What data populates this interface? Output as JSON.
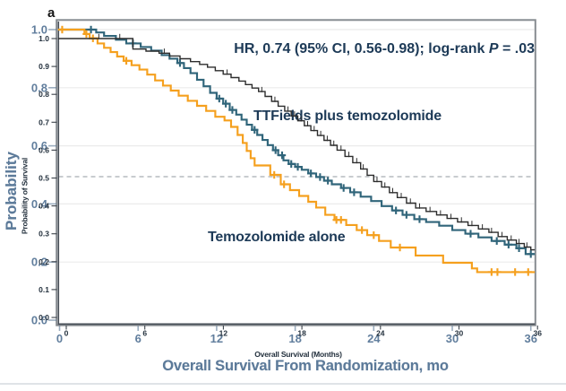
{
  "panel_label": "a",
  "annotation": {
    "prefix": "HR, 0.74 (95% CI, 0.56-0.98); log-rank ",
    "p_symbol": "P",
    "suffix": " = .03"
  },
  "series_labels": {
    "ttfields": "TTFields plus temozolomide",
    "tmz": "Temozolomide alone"
  },
  "axis_large": {
    "ylabel": "Probability",
    "xlabel": "Overall Survival From Randomization, mo",
    "y_tick_labels": [
      "1.0",
      "0.8",
      "0.6",
      "0.4",
      "0.2",
      "0.0"
    ],
    "x_tick_labels": [
      "0",
      "6",
      "12",
      "18",
      "24",
      "30",
      "36"
    ]
  },
  "axis_small": {
    "ylabel": "Probability of Survival",
    "xlabel": "Overall Survival (Months)",
    "y_tick_labels": [
      "1.0",
      "0.9",
      "0.8",
      "0.7",
      "0.6",
      "0.5",
      "0.4",
      "0.3",
      "0.2",
      "0.1",
      "0.0"
    ],
    "x_tick_labels": [
      "0",
      "6",
      "12",
      "18",
      "24",
      "30",
      "36"
    ]
  },
  "colors": {
    "ttfields": "#30657a",
    "tmz": "#f5a01e",
    "overlay": "#2d2d2d",
    "grid": "#ebebeb",
    "median": "#a8adb2",
    "frame": "#878c91",
    "axis": "#454c55",
    "tick_dark": "#3a4149",
    "tick_faded": "#5a7896",
    "text_navy": "#1d3a57",
    "text_faded": "#46688c",
    "text_small": "#23303d",
    "divider": "#dfe3e7"
  },
  "chart_data": {
    "type": "line",
    "subtype": "kaplan-meier-step",
    "title": "",
    "xlabel": "Overall Survival From Randomization, mo",
    "ylabel": "Probability",
    "xlim": [
      0,
      36
    ],
    "ylim": [
      0,
      1
    ],
    "x_ticks": [
      0,
      6,
      12,
      18,
      24,
      30,
      36
    ],
    "y_ticks_major": [
      1.0,
      0.8,
      0.6,
      0.4,
      0.2,
      0.0
    ],
    "y_ticks_minor": [
      1.0,
      0.9,
      0.8,
      0.7,
      0.6,
      0.5,
      0.4,
      0.3,
      0.2,
      0.1,
      0.0
    ],
    "median_line_y": 0.5,
    "grid": true,
    "annotation_text": "HR, 0.74 (95% CI, 0.56-0.98); log-rank P = .03",
    "series": [
      {
        "name": "TTFields plus temozolomide",
        "color_key": "ttfields",
        "scale": "large",
        "censor_style": "plus",
        "steps": [
          [
            0,
            1.0
          ],
          [
            2.8,
            0.99
          ],
          [
            3.4,
            0.978
          ],
          [
            4.3,
            0.965
          ],
          [
            5.1,
            0.9525
          ],
          [
            6.2,
            0.94
          ],
          [
            7.0,
            0.9275
          ],
          [
            7.8,
            0.9125
          ],
          [
            8.4,
            0.9
          ],
          [
            9.0,
            0.885
          ],
          [
            9.5,
            0.8675
          ],
          [
            10.0,
            0.85
          ],
          [
            10.5,
            0.8275
          ],
          [
            11.0,
            0.805
          ],
          [
            11.5,
            0.7825
          ],
          [
            12.0,
            0.7625
          ],
          [
            12.5,
            0.745
          ],
          [
            13.0,
            0.7235
          ],
          [
            13.5,
            0.7075
          ],
          [
            13.9,
            0.69
          ],
          [
            14.3,
            0.6725
          ],
          [
            14.7,
            0.655
          ],
          [
            15.1,
            0.6375
          ],
          [
            15.5,
            0.62
          ],
          [
            15.9,
            0.6025
          ],
          [
            16.3,
            0.585
          ],
          [
            16.7,
            0.5675
          ],
          [
            17.1,
            0.55
          ],
          [
            17.5,
            0.5375
          ],
          [
            18.0,
            0.5275
          ],
          [
            18.5,
            0.5175
          ],
          [
            19.0,
            0.505
          ],
          [
            19.6,
            0.4925
          ],
          [
            20.2,
            0.48
          ],
          [
            20.8,
            0.4675
          ],
          [
            21.5,
            0.455
          ],
          [
            22.2,
            0.44
          ],
          [
            23.0,
            0.425
          ],
          [
            23.8,
            0.41
          ],
          [
            24.6,
            0.3925
          ],
          [
            25.4,
            0.3775
          ],
          [
            26.2,
            0.3625
          ],
          [
            27.1,
            0.3475
          ],
          [
            28.0,
            0.3375
          ],
          [
            29.0,
            0.325
          ],
          [
            30.0,
            0.31
          ],
          [
            31.0,
            0.2975
          ],
          [
            32.0,
            0.285
          ],
          [
            33.0,
            0.2725
          ],
          [
            34.0,
            0.26
          ],
          [
            34.9,
            0.2475
          ],
          [
            35.6,
            0.2275
          ]
        ],
        "censors": [
          [
            2.4,
            1.0
          ],
          [
            5.6,
            0.9525
          ],
          [
            9.2,
            0.885
          ],
          [
            12.2,
            0.7625
          ],
          [
            12.7,
            0.745
          ],
          [
            13.2,
            0.7235
          ],
          [
            14.9,
            0.655
          ],
          [
            16.5,
            0.585
          ],
          [
            17.0,
            0.5675
          ],
          [
            17.7,
            0.5375
          ],
          [
            18.2,
            0.5275
          ],
          [
            19.2,
            0.505
          ],
          [
            19.9,
            0.4925
          ],
          [
            20.5,
            0.48
          ],
          [
            21.7,
            0.455
          ],
          [
            22.5,
            0.44
          ],
          [
            25.7,
            0.3775
          ],
          [
            26.5,
            0.3625
          ],
          [
            27.5,
            0.3475
          ],
          [
            31.4,
            0.2975
          ],
          [
            33.4,
            0.2725
          ],
          [
            34.3,
            0.26
          ],
          [
            35.1,
            0.2475
          ],
          [
            36.0,
            0.2275
          ]
        ]
      },
      {
        "name": "Temozolomide alone",
        "color_key": "tmz",
        "scale": "large",
        "censor_style": "plus",
        "steps": [
          [
            0,
            1.0
          ],
          [
            1.9,
            0.985
          ],
          [
            2.3,
            0.97
          ],
          [
            2.9,
            0.9525
          ],
          [
            3.4,
            0.9375
          ],
          [
            3.9,
            0.9225
          ],
          [
            4.4,
            0.9075
          ],
          [
            4.9,
            0.8925
          ],
          [
            5.5,
            0.8775
          ],
          [
            6.1,
            0.8625
          ],
          [
            6.7,
            0.845
          ],
          [
            7.3,
            0.825
          ],
          [
            7.9,
            0.8075
          ],
          [
            8.5,
            0.79
          ],
          [
            9.1,
            0.7725
          ],
          [
            9.8,
            0.755
          ],
          [
            10.5,
            0.7375
          ],
          [
            11.2,
            0.72
          ],
          [
            11.9,
            0.7
          ],
          [
            12.6,
            0.6875
          ],
          [
            13.1,
            0.665
          ],
          [
            13.6,
            0.6375
          ],
          [
            14.0,
            0.61
          ],
          [
            14.3,
            0.5825
          ],
          [
            14.6,
            0.5575
          ],
          [
            14.9,
            0.5325
          ],
          [
            16.1,
            0.5
          ],
          [
            16.9,
            0.4675
          ],
          [
            17.6,
            0.4475
          ],
          [
            18.3,
            0.4275
          ],
          [
            19.0,
            0.4075
          ],
          [
            19.6,
            0.3875
          ],
          [
            20.3,
            0.3625
          ],
          [
            21.0,
            0.345
          ],
          [
            21.9,
            0.3275
          ],
          [
            22.7,
            0.31
          ],
          [
            23.5,
            0.2925
          ],
          [
            24.4,
            0.2725
          ],
          [
            25.3,
            0.25
          ],
          [
            27.2,
            0.2225
          ],
          [
            29.3,
            0.1975
          ],
          [
            31.5,
            0.178
          ],
          [
            31.9,
            0.1655
          ]
        ],
        "censors": [
          [
            0.2,
            1.0
          ],
          [
            2.05,
            0.985
          ],
          [
            2.55,
            0.97
          ],
          [
            5.1,
            0.8925
          ],
          [
            16.4,
            0.5
          ],
          [
            17.15,
            0.4675
          ],
          [
            21.15,
            0.345
          ],
          [
            21.5,
            0.345
          ],
          [
            23.1,
            0.31
          ],
          [
            24.0,
            0.2925
          ],
          [
            26.0,
            0.25
          ],
          [
            33.0,
            0.1655
          ],
          [
            33.45,
            0.1655
          ],
          [
            34.8,
            0.1655
          ],
          [
            35.8,
            0.1655
          ]
        ]
      },
      {
        "name": "TTFields plus temozolomide (overlay curve)",
        "color_key": "overlay",
        "scale": "small",
        "censor_style": "tick",
        "steps": [
          [
            0,
            1.0
          ],
          [
            5.6,
            0.9625
          ],
          [
            6.6,
            0.955
          ],
          [
            7.6,
            0.9475
          ],
          [
            8.4,
            0.9375
          ],
          [
            9.2,
            0.9275
          ],
          [
            10.0,
            0.9175
          ],
          [
            10.7,
            0.9075
          ],
          [
            11.3,
            0.8975
          ],
          [
            11.9,
            0.885
          ],
          [
            12.5,
            0.8725
          ],
          [
            13.1,
            0.86
          ],
          [
            13.7,
            0.8475
          ],
          [
            14.2,
            0.835
          ],
          [
            14.7,
            0.8225
          ],
          [
            15.2,
            0.81
          ],
          [
            15.7,
            0.7925
          ],
          [
            16.2,
            0.775
          ],
          [
            16.7,
            0.7575
          ],
          [
            17.2,
            0.74
          ],
          [
            17.7,
            0.7225
          ],
          [
            18.2,
            0.705
          ],
          [
            18.7,
            0.6875
          ],
          [
            19.2,
            0.67
          ],
          [
            19.7,
            0.6525
          ],
          [
            20.2,
            0.635
          ],
          [
            20.7,
            0.6175
          ],
          [
            21.2,
            0.6
          ],
          [
            21.8,
            0.5775
          ],
          [
            22.4,
            0.555
          ],
          [
            23.0,
            0.5325
          ],
          [
            23.5,
            0.51
          ],
          [
            24.0,
            0.4875
          ],
          [
            24.6,
            0.4675
          ],
          [
            25.2,
            0.4475
          ],
          [
            25.8,
            0.43
          ],
          [
            26.5,
            0.41
          ],
          [
            27.2,
            0.3925
          ],
          [
            28.0,
            0.38
          ],
          [
            28.8,
            0.3675
          ],
          [
            29.6,
            0.355
          ],
          [
            30.4,
            0.3425
          ],
          [
            31.2,
            0.33
          ],
          [
            32.0,
            0.3175
          ],
          [
            32.8,
            0.305
          ],
          [
            33.5,
            0.29
          ],
          [
            34.2,
            0.2775
          ],
          [
            34.9,
            0.265
          ],
          [
            35.5,
            0.2525
          ],
          [
            36.0,
            0.2425
          ]
        ],
        "censors": [
          [
            3.0,
            1.0
          ],
          [
            4.6,
            1.0
          ],
          [
            8.0,
            0.9475
          ],
          [
            12.8,
            0.8725
          ],
          [
            15.45,
            0.81
          ],
          [
            16.45,
            0.775
          ],
          [
            17.45,
            0.74
          ],
          [
            17.95,
            0.7225
          ],
          [
            18.45,
            0.705
          ],
          [
            18.95,
            0.6875
          ],
          [
            19.45,
            0.67
          ],
          [
            19.95,
            0.6525
          ],
          [
            20.45,
            0.635
          ],
          [
            20.95,
            0.6175
          ],
          [
            21.5,
            0.6
          ],
          [
            22.1,
            0.5775
          ],
          [
            22.7,
            0.555
          ],
          [
            23.2,
            0.5325
          ],
          [
            24.25,
            0.4875
          ],
          [
            24.85,
            0.4675
          ],
          [
            25.45,
            0.4475
          ],
          [
            26.1,
            0.43
          ],
          [
            26.8,
            0.41
          ],
          [
            27.5,
            0.3925
          ],
          [
            28.3,
            0.38
          ],
          [
            29.1,
            0.3675
          ],
          [
            29.9,
            0.355
          ],
          [
            30.7,
            0.3425
          ],
          [
            31.5,
            0.33
          ],
          [
            32.3,
            0.3175
          ],
          [
            33.0,
            0.305
          ],
          [
            33.8,
            0.29
          ],
          [
            34.5,
            0.2775
          ],
          [
            35.1,
            0.265
          ],
          [
            35.7,
            0.2525
          ]
        ]
      }
    ]
  }
}
